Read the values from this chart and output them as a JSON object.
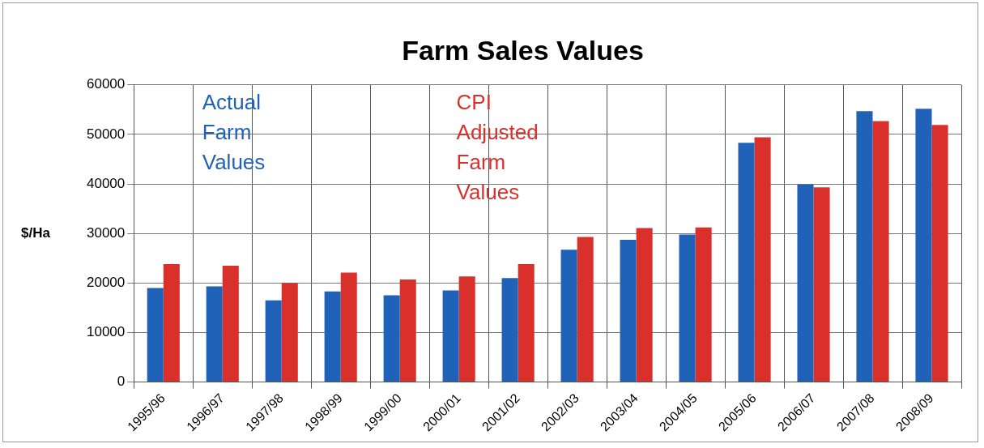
{
  "chart_data": {
    "type": "bar",
    "title": "Farm Sales Values",
    "ylabel": "$/Ha",
    "categories": [
      "1995/96",
      "1996/97",
      "1997/98",
      "1998/99",
      "1999/00",
      "2000/01",
      "2001/02",
      "2002/03",
      "2003/04",
      "2004/05",
      "2005/06",
      "2006/07",
      "2007/08",
      "2008/09"
    ],
    "series": [
      {
        "name": "Actual Farm Values",
        "color": "#1f62b8",
        "values": [
          19000,
          19300,
          16500,
          18300,
          17500,
          18500,
          21000,
          26700,
          28700,
          29800,
          48300,
          39900,
          54700,
          55200
        ]
      },
      {
        "name": "CPI Adjusted Farm Values",
        "color": "#d9302c",
        "values": [
          23800,
          23500,
          20000,
          22100,
          20700,
          21300,
          23800,
          29300,
          31100,
          31200,
          49400,
          39300,
          52700,
          51900
        ]
      }
    ],
    "ylim": [
      0,
      60000
    ],
    "yticks": [
      0,
      10000,
      20000,
      30000,
      40000,
      50000,
      60000
    ],
    "grid": true,
    "legend": false
  }
}
